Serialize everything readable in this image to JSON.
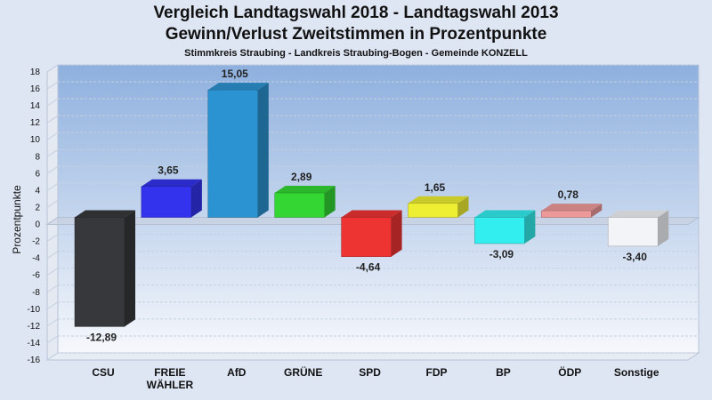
{
  "header": {
    "title_line1": "Vergleich Landtagswahl 2018 - Landtagswahl 2013",
    "title_line2": "Gewinn/Verlust Zweitstimmen in Prozentpunkte",
    "subtitle": "Stimmkreis Straubing - Landkreis Straubing-Bogen - Gemeinde KONZELL"
  },
  "chart_data": {
    "type": "bar",
    "title": "Vergleich Landtagswahl 2018 - Landtagswahl 2013 / Gewinn/Verlust Zweitstimmen in Prozentpunkte",
    "subtitle": "Stimmkreis Straubing - Landkreis Straubing-Bogen - Gemeinde KONZELL",
    "xlabel": "",
    "ylabel": "Prozentpunkte",
    "ylim": [
      -16,
      18
    ],
    "yticks": [
      18,
      16,
      14,
      12,
      10,
      8,
      6,
      4,
      2,
      0,
      -2,
      -4,
      -6,
      -8,
      -10,
      -12,
      -14,
      -16
    ],
    "grid": true,
    "categories": [
      "CSU",
      "FREIE WÄHLER",
      "AfD",
      "GRÜNE",
      "SPD",
      "FDP",
      "BP",
      "ÖDP",
      "Sonstige"
    ],
    "category_lines": [
      [
        "CSU"
      ],
      [
        "FREIE",
        "WÄHLER"
      ],
      [
        "AfD"
      ],
      [
        "GRÜNE"
      ],
      [
        "SPD"
      ],
      [
        "FDP"
      ],
      [
        "BP"
      ],
      [
        "ÖDP"
      ],
      [
        "Sonstige"
      ]
    ],
    "values": [
      -12.89,
      3.65,
      15.05,
      2.89,
      -4.64,
      1.65,
      -3.09,
      0.78,
      -3.4
    ],
    "value_labels": [
      "-12,89",
      "3,65",
      "15,05",
      "2,89",
      "-4,64",
      "1,65",
      "-3,09",
      "0,78",
      "-3,40"
    ],
    "colors": [
      "#36383b",
      "#3333ee",
      "#2b93d1",
      "#33d633",
      "#ee3333",
      "#eeee33",
      "#33eeee",
      "#ee9999",
      "#f2f4f8"
    ]
  }
}
